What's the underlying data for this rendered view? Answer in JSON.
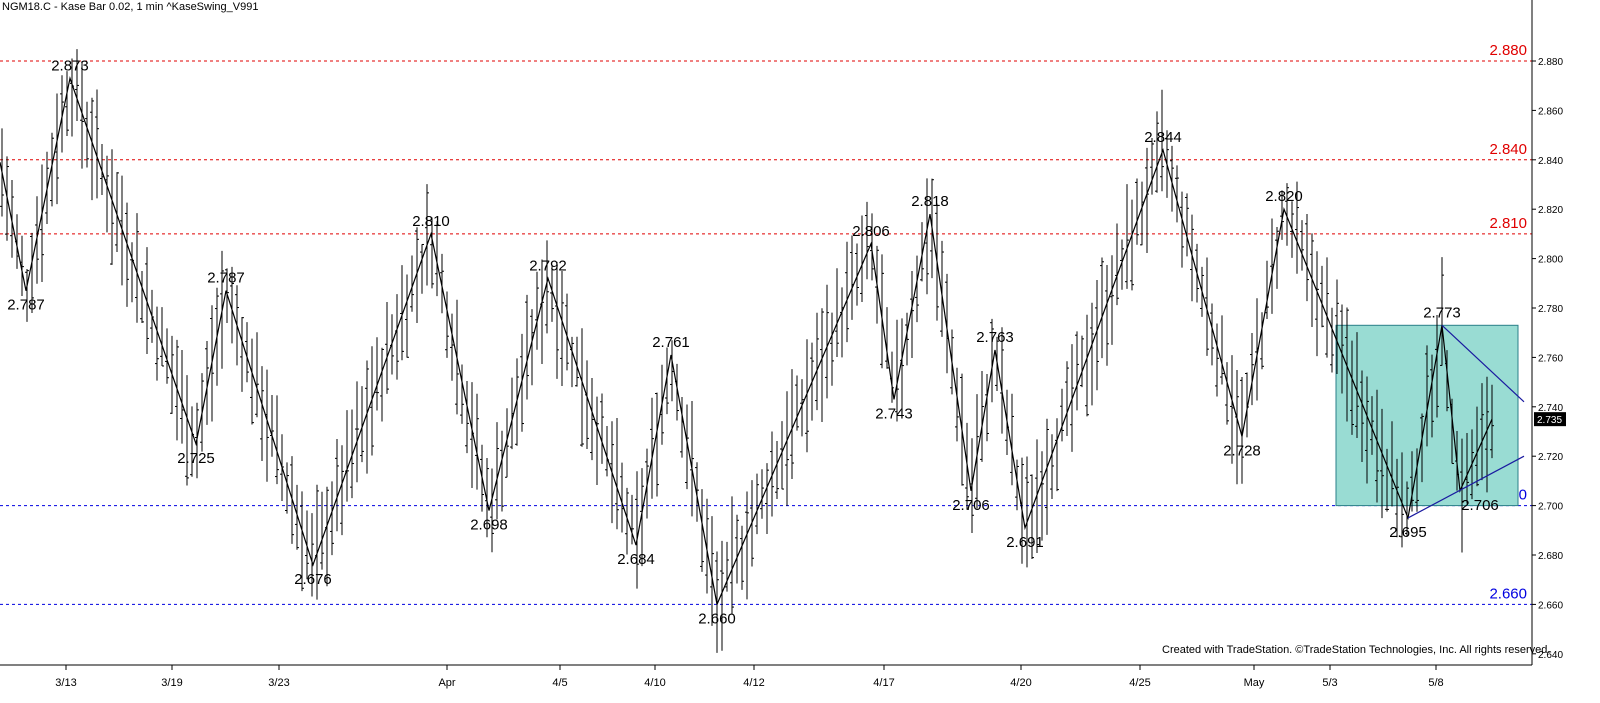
{
  "header": {
    "title": "NGM18.C - Kase Bar 0.02, 1 min  ^KaseSwing_V991"
  },
  "copyright": "Created with TradeStation. ©TradeStation Technologies, Inc. All rights reserved.",
  "colors": {
    "resistance": "#e00000",
    "support": "#0000e0",
    "box_fill": "#99dcd3",
    "price": "#000000",
    "trendline": "#1a1aa0"
  },
  "chart_data": {
    "type": "ohlc-swing",
    "ylim": [
      2.632,
      2.904
    ],
    "y_ticks": [
      "2.880",
      "2.860",
      "2.840",
      "2.820",
      "2.800",
      "2.780",
      "2.760",
      "2.740",
      "2.720",
      "2.700",
      "2.680",
      "2.660",
      "2.640"
    ],
    "x_ticks": [
      "3/13",
      "3/19",
      "3/23",
      "Apr",
      "4/5",
      "4/10",
      "4/12",
      "4/17",
      "4/20",
      "4/25",
      "May",
      "5/3",
      "5/8"
    ],
    "last_price": "2.735",
    "levels": [
      {
        "value": 2.88,
        "label": "2.880",
        "kind": "resistance"
      },
      {
        "value": 2.84,
        "label": "2.840",
        "kind": "resistance"
      },
      {
        "value": 2.81,
        "label": "2.810",
        "kind": "resistance"
      },
      {
        "value": 2.7,
        "label": "2.700",
        "kind": "support"
      },
      {
        "value": 2.66,
        "label": "2.660",
        "kind": "support"
      }
    ],
    "swings": [
      {
        "label": "",
        "value": 2.839
      },
      {
        "label": "2.787",
        "value": 2.787
      },
      {
        "label": "2.873",
        "value": 2.873
      },
      {
        "label": "2.725",
        "value": 2.725
      },
      {
        "label": "2.787",
        "value": 2.787
      },
      {
        "label": "2.676",
        "value": 2.676
      },
      {
        "label": "2.810",
        "value": 2.81
      },
      {
        "label": "2.698",
        "value": 2.698
      },
      {
        "label": "2.792",
        "value": 2.792
      },
      {
        "label": "2.684",
        "value": 2.684
      },
      {
        "label": "2.761",
        "value": 2.761
      },
      {
        "label": "2.660",
        "value": 2.66
      },
      {
        "label": "2.806",
        "value": 2.806
      },
      {
        "label": "2.743",
        "value": 2.743
      },
      {
        "label": "2.818",
        "value": 2.818
      },
      {
        "label": "2.706",
        "value": 2.706
      },
      {
        "label": "2.763",
        "value": 2.763
      },
      {
        "label": "2.691",
        "value": 2.691
      },
      {
        "label": "2.844",
        "value": 2.844
      },
      {
        "label": "2.728",
        "value": 2.728
      },
      {
        "label": "2.820",
        "value": 2.82
      },
      {
        "label": "2.695",
        "value": 2.695
      },
      {
        "label": "2.773",
        "value": 2.773
      },
      {
        "label": "2.706",
        "value": 2.706
      },
      {
        "label": "",
        "value": 2.735
      }
    ],
    "box": {
      "low": 2.7,
      "high": 2.773
    },
    "trendlines": [
      {
        "from": 2.773,
        "to": 2.742
      },
      {
        "from": 2.695,
        "to": 2.72
      }
    ],
    "grid": false,
    "legend": "none"
  }
}
